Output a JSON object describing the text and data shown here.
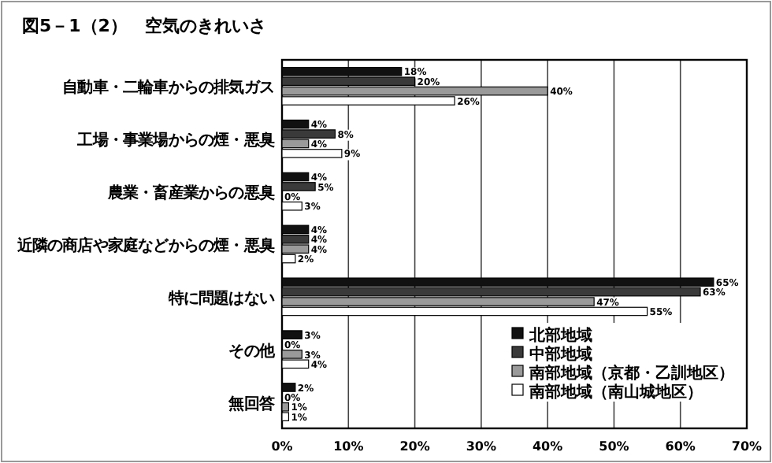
{
  "chart_data": {
    "type": "bar",
    "orientation": "horizontal",
    "title": "図5－1（2）　空気のきれいさ",
    "categories": [
      "自動車・二輪車からの排気ガス",
      "工場・事業場からの煙・悪臭",
      "農業・畜産業からの悪臭",
      "近隣の商店や家庭などからの煙・悪臭",
      "特に問題はない",
      "その他",
      "無回答"
    ],
    "series": [
      {
        "name": "北部地域",
        "color": "#111111",
        "values": [
          18,
          4,
          4,
          4,
          65,
          3,
          2
        ],
        "value_labels": [
          "18%",
          "4%",
          "4%",
          "4%",
          "65%",
          "3%",
          "2%"
        ]
      },
      {
        "name": "中部地域",
        "color": "#3a3a3a",
        "values": [
          20,
          8,
          5,
          4,
          63,
          0,
          0
        ],
        "value_labels": [
          "20%",
          "8%",
          "5%",
          "4%",
          "63%",
          "0%",
          "0%"
        ]
      },
      {
        "name": "南部地域（京都・乙訓地区）",
        "color": "#9a9a9a",
        "values": [
          40,
          4,
          0,
          4,
          47,
          3,
          1
        ],
        "value_labels": [
          "40%",
          "4%",
          "0%",
          "4%",
          "47%",
          "3%",
          "1%"
        ]
      },
      {
        "name": "南部地域（南山城地区）",
        "color": "#ffffff",
        "values": [
          26,
          9,
          3,
          2,
          55,
          4,
          1
        ],
        "value_labels": [
          "26%",
          "9%",
          "3%",
          "2%",
          "55%",
          "4%",
          "1%"
        ]
      }
    ],
    "xlim": [
      0,
      70
    ],
    "xticks": [
      {
        "value": 0,
        "label": "0%"
      },
      {
        "value": 10,
        "label": "10%"
      },
      {
        "value": 20,
        "label": "20%"
      },
      {
        "value": 30,
        "label": "30%"
      },
      {
        "value": 40,
        "label": "40%"
      },
      {
        "value": 50,
        "label": "50%"
      },
      {
        "value": 60,
        "label": "60%"
      },
      {
        "value": 70,
        "label": "70%"
      }
    ],
    "grid": "x",
    "legend": "bottom right"
  }
}
